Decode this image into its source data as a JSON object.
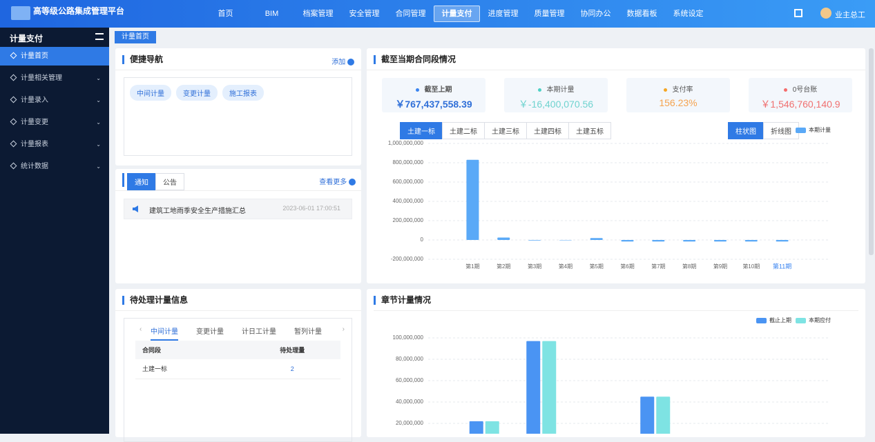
{
  "header": {
    "title": "高等级公路集成管理平台",
    "nav": [
      "首页",
      "BIM",
      "档案管理",
      "安全管理",
      "合同管理",
      "计量支付",
      "进度管理",
      "质量管理",
      "协同办公",
      "数据看板",
      "系统设定"
    ],
    "user": "业主总工"
  },
  "sidebar": {
    "title": "计量支付",
    "items": [
      "计量首页",
      "计量相关管理",
      "计量录入",
      "计量变更",
      "计量报表",
      "统计数据"
    ]
  },
  "tab": "计量首页",
  "quick_nav": {
    "title": "便捷导航",
    "add": "添加",
    "links": [
      "中间计量",
      "变更计量",
      "施工报表"
    ]
  },
  "notice": {
    "tabs": [
      "通知",
      "公告"
    ],
    "more": "查看更多",
    "items": [
      {
        "text": "建筑工地雨季安全生产措施汇总",
        "date": "2023-06-01 17:00:51"
      }
    ]
  },
  "pending": {
    "title": "待处理计量信息",
    "tabs": [
      "中间计量",
      "变更计量",
      "计日工计量",
      "暂列计量"
    ],
    "table": {
      "headers": [
        "合同段",
        "待处理量"
      ],
      "rows": [
        [
          "土建一标",
          2
        ]
      ]
    }
  },
  "chart_data": [
    {
      "type": "bar",
      "title": "截至当期合同段情况",
      "stats": [
        {
          "label": "截至上期",
          "value": "￥767,437,558.39"
        },
        {
          "label": "本期计量",
          "value": "￥-16,400,070.56"
        },
        {
          "label": "支付率",
          "value": "156.23%"
        },
        {
          "label": "0号台账",
          "value": "￥1,546,760,140.9"
        }
      ],
      "tabs": [
        "土建一标",
        "土建二标",
        "土建三标",
        "土建四标",
        "土建五标"
      ],
      "views": [
        "柱状图",
        "折线图"
      ],
      "categories": [
        "第1期",
        "第2期",
        "第3期",
        "第4期",
        "第5期",
        "第6期",
        "第7期",
        "第8期",
        "第9期",
        "第10期",
        "第11期"
      ],
      "series": [
        {
          "name": "本期计量",
          "color": "#5aa9f7",
          "values": [
            830000000,
            25000000,
            -5000000,
            -3000000,
            20000000,
            -16000000,
            -16000000,
            -16000000,
            -16000000,
            -16000000,
            -16400070.56
          ]
        }
      ],
      "ylim": [
        -200000000,
        1000000000
      ],
      "yticks": [
        {
          "value": -200000000,
          "label": "-200,000,000"
        },
        0,
        {
          "value": 200000000,
          "label": "200,000,000"
        },
        {
          "value": 400000000,
          "label": "400,000,000"
        },
        {
          "value": 600000000,
          "label": "600,000,000"
        },
        {
          "value": 800000000,
          "label": "800,000,000"
        },
        {
          "value": 1000000000,
          "label": "1,000,000,000"
        }
      ],
      "grid": true,
      "legend": "top-right"
    },
    {
      "type": "bar",
      "title": "章节计量情况",
      "categories": [
        null,
        null,
        null,
        null,
        null,
        null
      ],
      "series": [
        {
          "name": "截止上期",
          "color": "#4a94f3",
          "values": [
            22000000,
            97000000,
            0,
            45000000,
            0,
            0
          ]
        },
        {
          "name": "本期应付",
          "color": "#7ee3e3",
          "values": [
            22000000,
            97000000,
            0,
            45000000,
            0,
            0
          ]
        }
      ],
      "ylim": [
        0,
        100000000
      ],
      "yticks": [
        {
          "value": 20000000,
          "label": "20,000,000"
        },
        {
          "value": 40000000,
          "label": "40,000,000"
        },
        {
          "value": 60000000,
          "label": "60,000,000"
        },
        {
          "value": 80000000,
          "label": "80,000,000"
        },
        {
          "value": 100000000,
          "label": "100,000,000"
        }
      ],
      "grid": true,
      "legend": "top-right"
    }
  ]
}
